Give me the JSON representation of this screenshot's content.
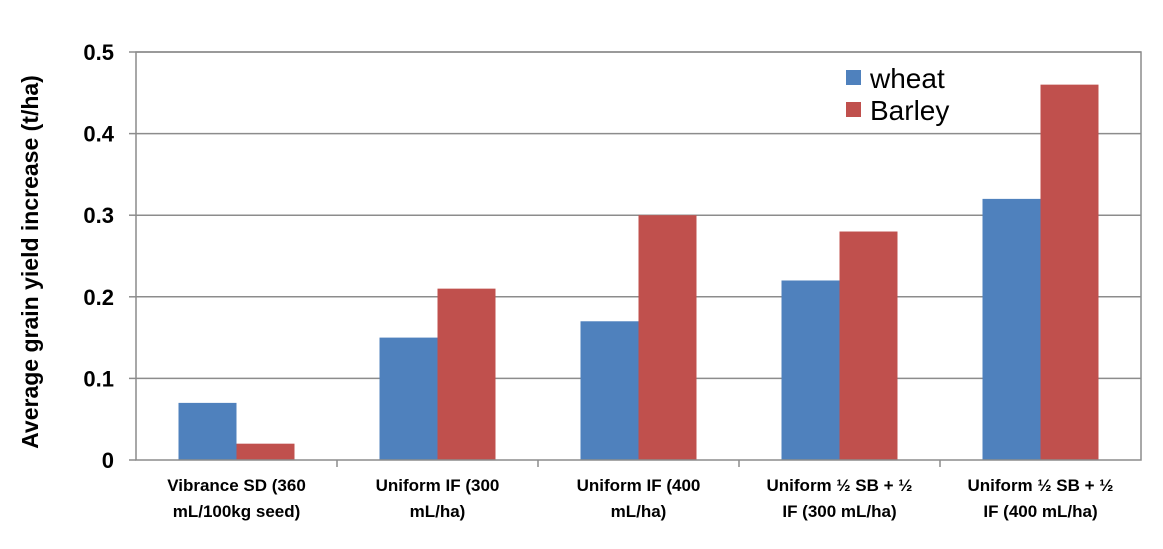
{
  "chart_data": {
    "type": "bar",
    "title": "",
    "xlabel": "",
    "ylabel": "Average grain yield increase (t/ha)",
    "ylim": [
      0,
      0.5
    ],
    "yticks": [
      "0",
      "0.1",
      "0.2",
      "0.3",
      "0.4",
      "0.5"
    ],
    "categories": [
      [
        "Vibrance SD (360",
        "mL/100kg seed)"
      ],
      [
        "Uniform IF (300",
        "mL/ha)"
      ],
      [
        "Uniform IF (400",
        "mL/ha)"
      ],
      [
        "Uniform ½ SB + ½",
        "IF (300 mL/ha)"
      ],
      [
        "Uniform ½ SB + ½",
        "IF (400 mL/ha)"
      ]
    ],
    "series": [
      {
        "name": "wheat",
        "color": "#4f81bd",
        "values": [
          0.07,
          0.15,
          0.17,
          0.22,
          0.32
        ]
      },
      {
        "name": "Barley",
        "color": "#c0504d",
        "values": [
          0.02,
          0.21,
          0.3,
          0.28,
          0.46
        ]
      }
    ],
    "grid": true,
    "legend_position": "top-right"
  }
}
